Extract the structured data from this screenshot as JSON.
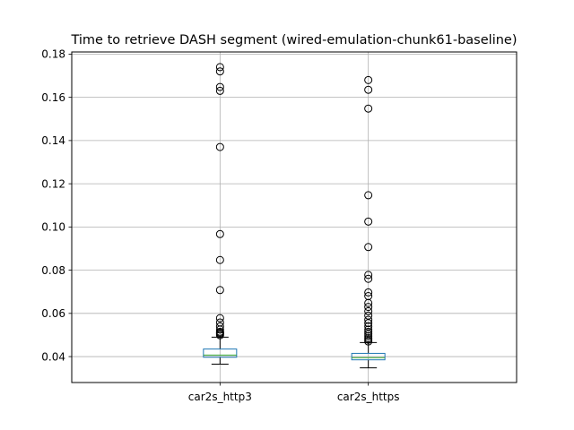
{
  "chart_data": {
    "type": "box",
    "title": "Time to retrieve DASH segment (wired-emulation-chunk61-baseline)",
    "xlabel": "",
    "ylabel": "",
    "categories": [
      "car2s_http3",
      "car2s_https"
    ],
    "ylim": [
      0.028,
      0.181
    ],
    "yticks": [
      0.04,
      0.06,
      0.08,
      0.1,
      0.12,
      0.14,
      0.16,
      0.18
    ],
    "ytick_labels": [
      "0.04",
      "0.06",
      "0.08",
      "0.10",
      "0.12",
      "0.14",
      "0.16",
      "0.18"
    ],
    "grid": true,
    "boxes": [
      {
        "name": "car2s_http3",
        "whisker_low": 0.0365,
        "q1": 0.0397,
        "median": 0.0407,
        "q3": 0.0435,
        "whisker_high": 0.049,
        "outliers": [
          0.0499,
          0.0505,
          0.051,
          0.0515,
          0.0525,
          0.054,
          0.0558,
          0.0578,
          0.0708,
          0.0847,
          0.0967,
          0.137,
          0.163,
          0.1648,
          0.172,
          0.174
        ]
      },
      {
        "name": "car2s_https",
        "whisker_low": 0.0348,
        "q1": 0.0385,
        "median": 0.0395,
        "q3": 0.0415,
        "whisker_high": 0.0465,
        "outliers": [
          0.047,
          0.0478,
          0.0485,
          0.0495,
          0.0505,
          0.0515,
          0.0525,
          0.054,
          0.0555,
          0.057,
          0.059,
          0.061,
          0.063,
          0.0648,
          0.068,
          0.0697,
          0.076,
          0.0778,
          0.0907,
          0.1025,
          0.1147,
          0.1548,
          0.1635,
          0.168
        ]
      }
    ],
    "colors": {
      "box": "#1f77b4",
      "median": "#2ca02c",
      "whisker": "#000000",
      "outlier_edge": "#000000",
      "grid": "#b0b0b0",
      "axes": "#000000"
    }
  }
}
